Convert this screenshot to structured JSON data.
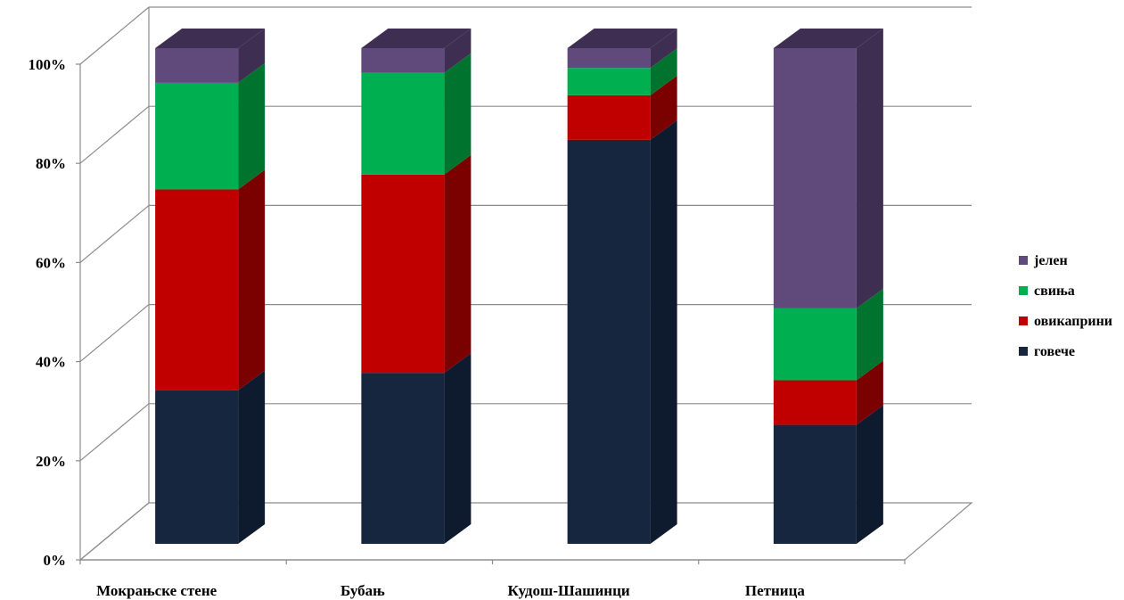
{
  "chart_data": {
    "type": "bar",
    "stacked": true,
    "percent": true,
    "three_d": true,
    "categories": [
      "Мокрањске стене",
      "Бубањ",
      "Кудош-Шашинци",
      "Петница"
    ],
    "series": [
      {
        "name": "говече",
        "color": "#16263f",
        "side": "#0e1a2d",
        "values": [
          31,
          34.5,
          81.5,
          24
        ]
      },
      {
        "name": "овикаприни",
        "color": "#c00000",
        "side": "#7b0000",
        "values": [
          40.5,
          40,
          9,
          9
        ]
      },
      {
        "name": "свиња",
        "color": "#00b050",
        "side": "#00742f",
        "values": [
          21.5,
          20.5,
          5.5,
          14.5
        ]
      },
      {
        "name": "јелен",
        "color": "#604a7b",
        "side": "#3e2f52",
        "values": [
          7,
          5,
          4,
          52.5
        ]
      }
    ],
    "yticks": [
      "0%",
      "20%",
      "40%",
      "60%",
      "80%",
      "100%"
    ],
    "ylim": [
      0,
      100
    ],
    "grid": true,
    "legend_position": "right"
  }
}
